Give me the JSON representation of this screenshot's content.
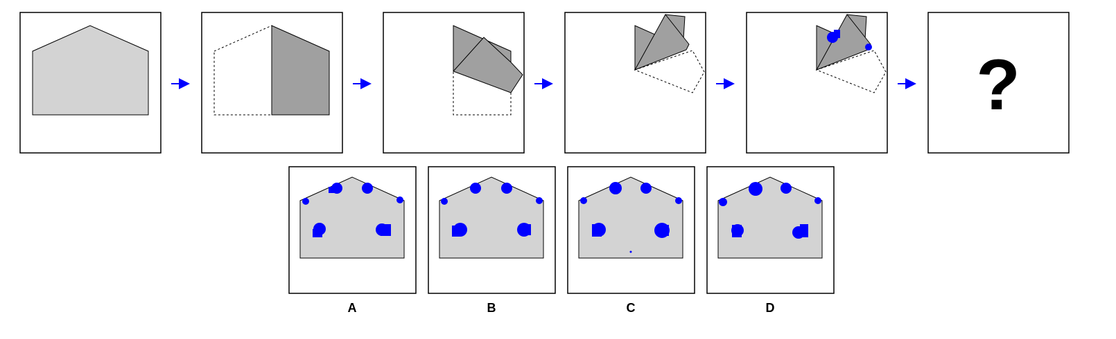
{
  "question": {
    "mark": "?"
  },
  "options": [
    {
      "letter": "A"
    },
    {
      "letter": "B"
    },
    {
      "letter": "C"
    },
    {
      "letter": "D"
    }
  ],
  "colors": {
    "paper": "#d3d3d3",
    "folded_paper": "#a0a0a0",
    "hole": "#0000ff",
    "arrow": "#0000ff",
    "outline": "#000000"
  },
  "icons": {
    "arrow": "right-arrow-icon",
    "question": "question-mark-icon"
  }
}
